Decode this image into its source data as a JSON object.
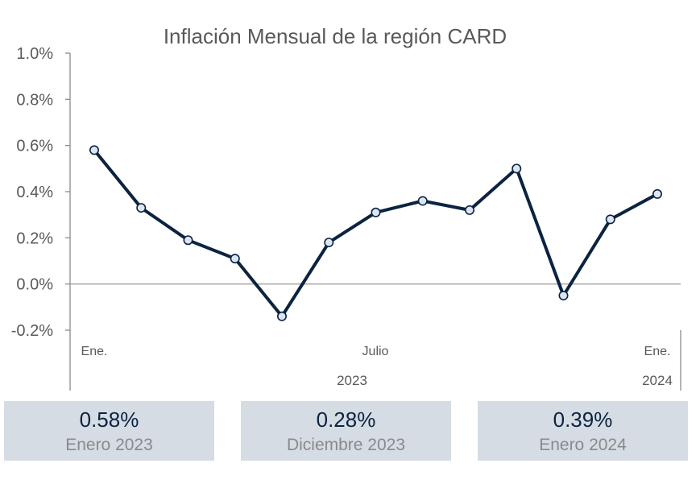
{
  "chart_data": {
    "type": "line",
    "title": "Inflación Mensual de la región CARD",
    "xlabel": "",
    "ylabel": "",
    "ylim": [
      -0.2,
      1.0
    ],
    "y_ticks": [
      "1.0%",
      "0.8%",
      "0.6%",
      "0.4%",
      "0.2%",
      "0.0%",
      "-0.2%"
    ],
    "x_month_labels": [
      "Ene.",
      "Julio",
      "Ene."
    ],
    "x_year_labels": [
      "2023",
      "2024"
    ],
    "grid": false,
    "series": [
      {
        "color": "#0c2340",
        "x": [
          "2023-01",
          "2023-02",
          "2023-03",
          "2023-04",
          "2023-05",
          "2023-06",
          "2023-07",
          "2023-08",
          "2023-09",
          "2023-10",
          "2023-11",
          "2023-12",
          "2024-01"
        ],
        "values": [
          0.58,
          0.33,
          0.19,
          0.11,
          -0.14,
          0.18,
          0.31,
          0.36,
          0.32,
          0.5,
          -0.05,
          0.28,
          0.39
        ]
      }
    ]
  },
  "summary_cards": [
    {
      "value": "0.58%",
      "label": "Enero 2023"
    },
    {
      "value": "0.28%",
      "label": "Diciembre 2023"
    },
    {
      "value": "0.39%",
      "label": "Enero 2024"
    }
  ]
}
